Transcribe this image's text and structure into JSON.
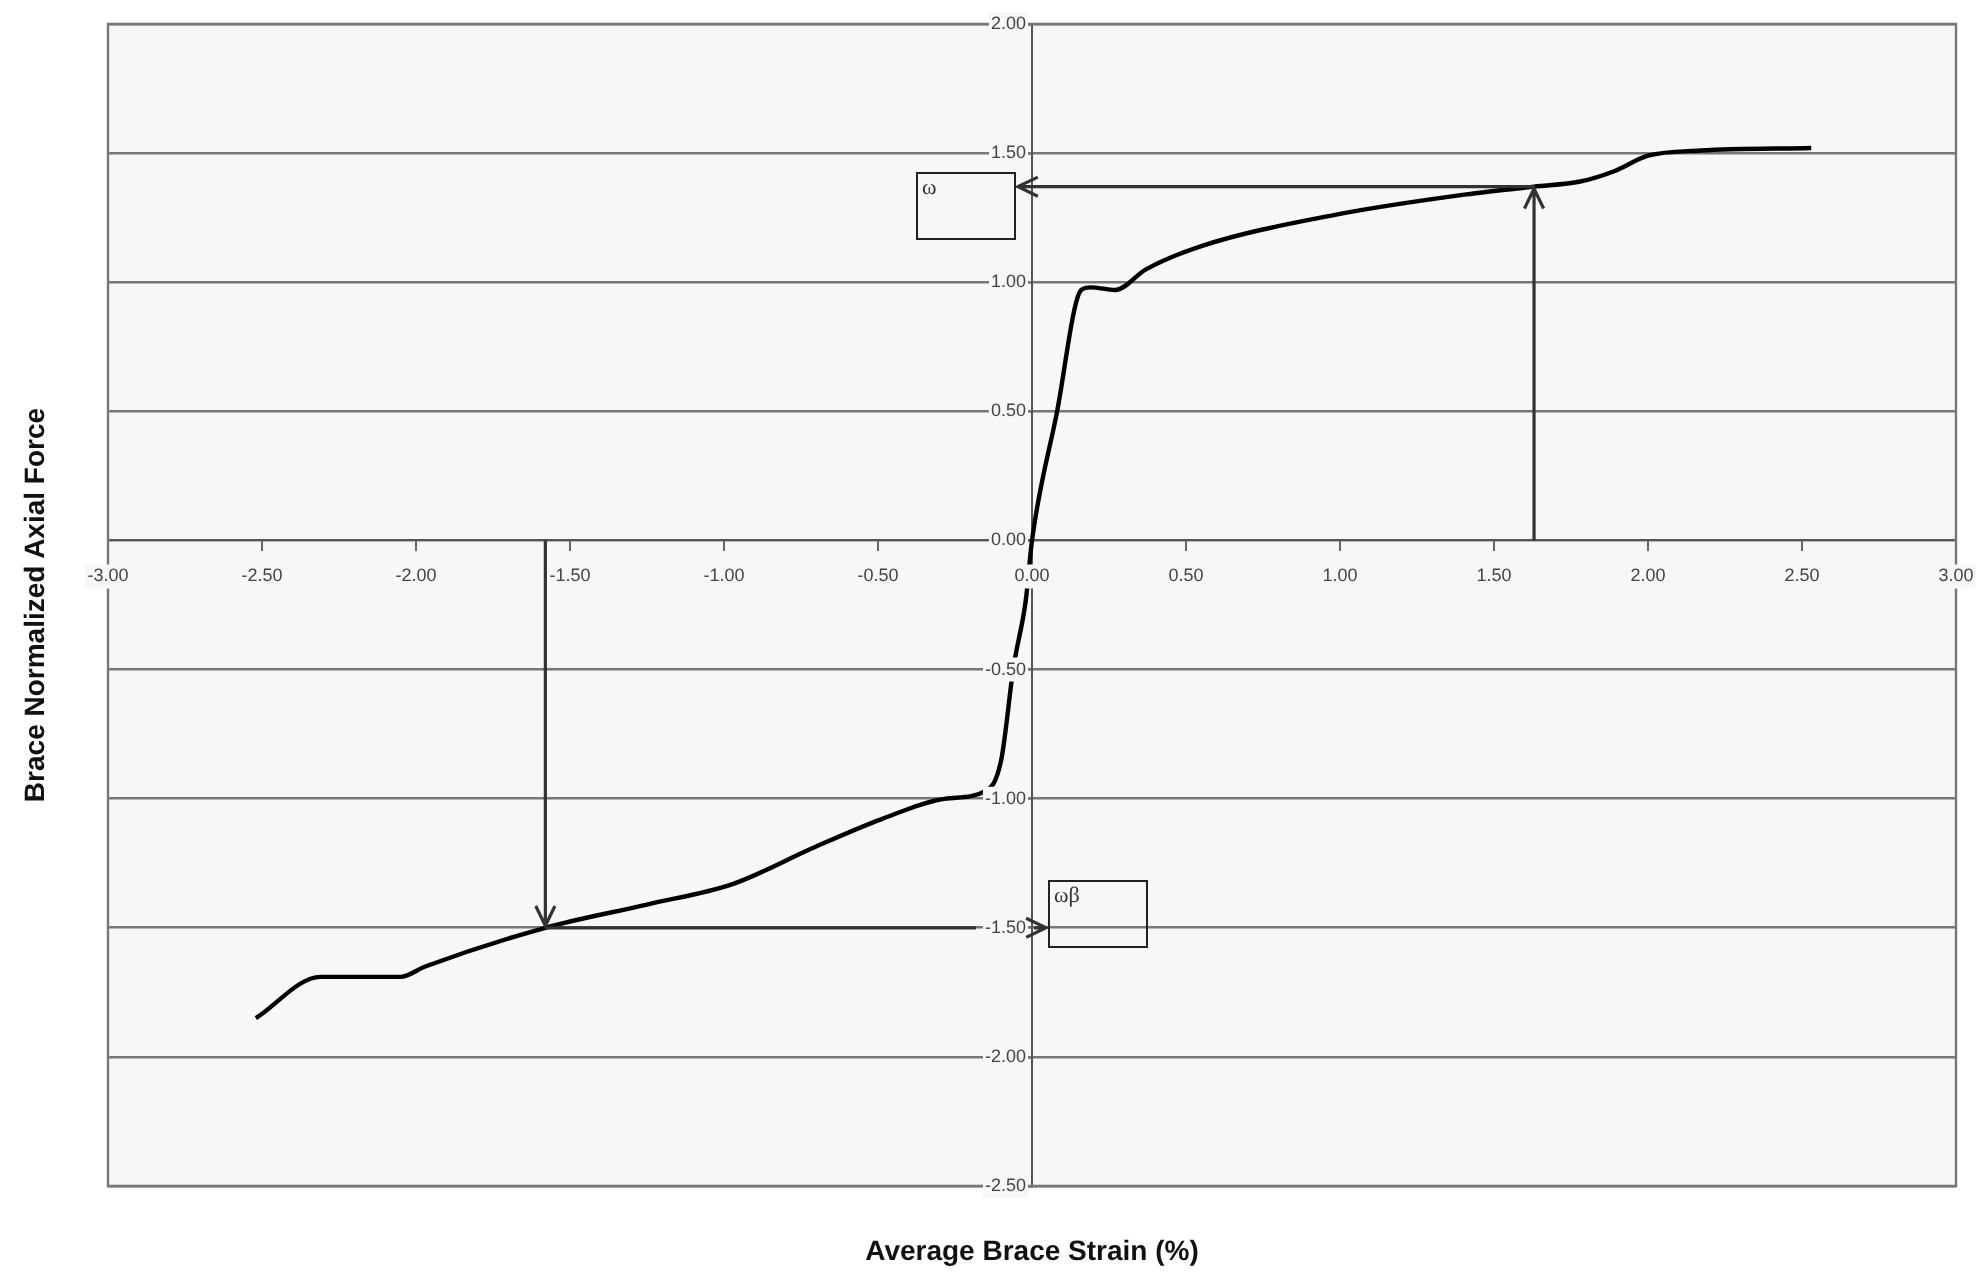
{
  "chart_data": {
    "type": "line",
    "xlabel": "Average Brace Strain (%)",
    "ylabel": "Brace Normalized Axial Force",
    "x": [
      -2.52,
      -2.31,
      -2.05,
      -1.97,
      -1.58,
      -1.25,
      -0.97,
      -0.71,
      -0.49,
      -0.28,
      -0.15,
      -0.1,
      -0.06,
      -0.02,
      0,
      0.08,
      0.16,
      0.19,
      0.27,
      0.37,
      0.55,
      0.98,
      1.41,
      1.63,
      1.78,
      1.89,
      2.0,
      2.17,
      2.53
    ],
    "series": [
      {
        "color": "#000000",
        "values": [
          -1.85,
          -1.69,
          -1.69,
          -1.65,
          -1.5,
          -1.41,
          -1.33,
          -1.19,
          -1.08,
          -1.0,
          -0.97,
          -0.85,
          -0.49,
          -0.23,
          0,
          0.49,
          0.97,
          0.98,
          0.97,
          1.05,
          1.14,
          1.26,
          1.34,
          1.37,
          1.39,
          1.43,
          1.49,
          1.51,
          1.52
        ]
      }
    ],
    "xlim": [
      -3,
      3
    ],
    "xticks": [
      {
        "value": -3,
        "label": "-3.00"
      },
      {
        "value": -2.5,
        "label": "-2.50"
      },
      {
        "value": -2,
        "label": "-2.00"
      },
      {
        "value": -1.5,
        "label": "-1.50"
      },
      {
        "value": -1,
        "label": "-1.00"
      },
      {
        "value": -0.5,
        "label": "-0.50"
      },
      {
        "value": 0,
        "label": "0.00"
      },
      {
        "value": 0.5,
        "label": "0.50"
      },
      {
        "value": 1,
        "label": "1.00"
      },
      {
        "value": 1.5,
        "label": "1.50"
      },
      {
        "value": 2,
        "label": "2.00"
      },
      {
        "value": 2.5,
        "label": "2.50"
      },
      {
        "value": 3,
        "label": "3.00"
      }
    ],
    "ylim": [
      -2.5,
      2
    ],
    "yticks": [
      {
        "value": -2.5,
        "label": "-2.50"
      },
      {
        "value": -2,
        "label": "-2.00"
      },
      {
        "value": -1.5,
        "label": "-1.50"
      },
      {
        "value": -1,
        "label": "-1.00"
      },
      {
        "value": -0.5,
        "label": "-0.50"
      },
      {
        "value": 0,
        "label": "0.00"
      },
      {
        "value": 0.5,
        "label": "0.50"
      },
      {
        "value": 1,
        "label": "1.00"
      },
      {
        "value": 1.5,
        "label": "1.50"
      },
      {
        "value": 2,
        "label": "2.00"
      }
    ],
    "grid": "y",
    "legend": false,
    "marker": "none",
    "line_style": "solid",
    "annotations": [
      "ω",
      "ωβ"
    ]
  }
}
